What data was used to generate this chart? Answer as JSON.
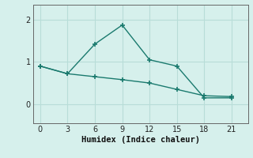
{
  "xlabel": "Humidex (Indice chaleur)",
  "background_color": "#d6f0ec",
  "grid_color": "#b8ddd8",
  "line_color": "#1a7a6e",
  "x_ticks": [
    0,
    3,
    6,
    9,
    12,
    15,
    18,
    21
  ],
  "ylim": [
    -0.45,
    2.35
  ],
  "xlim": [
    -0.8,
    22.8
  ],
  "yticks": [
    0,
    1,
    2
  ],
  "line1_x": [
    0,
    3,
    6,
    9,
    12,
    15,
    18,
    21
  ],
  "line1_y": [
    0.9,
    0.72,
    1.42,
    1.87,
    1.05,
    0.9,
    0.15,
    0.15
  ],
  "line2_x": [
    0,
    3,
    6,
    9,
    12,
    15,
    18,
    21
  ],
  "line2_y": [
    0.9,
    0.72,
    0.65,
    0.58,
    0.5,
    0.35,
    0.2,
    0.18
  ]
}
